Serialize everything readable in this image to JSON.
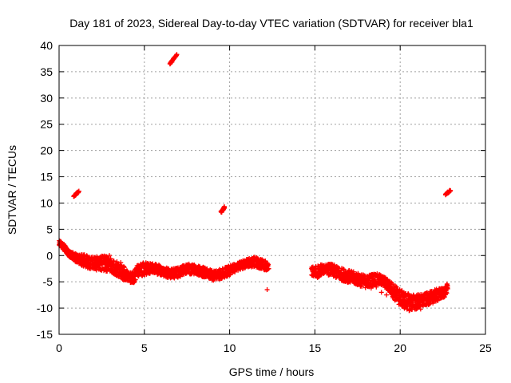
{
  "chart_data": {
    "type": "scatter",
    "title": "Day 181 of 2023, Sidereal Day-to-day VTEC variation (SDTVAR) for receiver bla1",
    "xlabel": "GPS time / hours",
    "ylabel": "SDTVAR / TECUs",
    "xlim": [
      0,
      25
    ],
    "ylim": [
      -15,
      40
    ],
    "xticks": [
      "0",
      "5",
      "10",
      "15",
      "20",
      "25"
    ],
    "yticks": [
      "40",
      "35",
      "30",
      "25",
      "20",
      "15",
      "10",
      "5",
      "0",
      "-5",
      "-10",
      "-15"
    ],
    "grid": true,
    "marker": "+",
    "series_color": "#ff0000",
    "trend": [
      [
        0.0,
        2.5
      ],
      [
        0.3,
        1.5
      ],
      [
        0.6,
        0.3
      ],
      [
        1.0,
        -0.5
      ],
      [
        1.5,
        -1.0
      ],
      [
        2.0,
        -1.5
      ],
      [
        2.5,
        -1.5
      ],
      [
        3.0,
        -1.5
      ],
      [
        3.3,
        -2.5
      ],
      [
        3.7,
        -3.0
      ],
      [
        4.0,
        -4.0
      ],
      [
        4.3,
        -4.5
      ],
      [
        4.6,
        -3.0
      ],
      [
        5.0,
        -2.5
      ],
      [
        5.5,
        -2.5
      ],
      [
        6.0,
        -2.8
      ],
      [
        6.5,
        -3.5
      ],
      [
        7.0,
        -3.2
      ],
      [
        7.5,
        -2.5
      ],
      [
        8.0,
        -2.8
      ],
      [
        8.5,
        -3.2
      ],
      [
        9.0,
        -3.8
      ],
      [
        9.5,
        -3.5
      ],
      [
        10.0,
        -2.8
      ],
      [
        10.5,
        -2.0
      ],
      [
        11.0,
        -1.5
      ],
      [
        11.5,
        -1.2
      ],
      [
        12.0,
        -1.8
      ],
      [
        12.3,
        -2.0
      ],
      null,
      [
        14.8,
        -3.2
      ],
      [
        15.2,
        -3.0
      ],
      [
        15.6,
        -2.5
      ],
      [
        16.0,
        -2.8
      ],
      [
        16.5,
        -3.5
      ],
      [
        17.0,
        -4.0
      ],
      [
        17.5,
        -4.5
      ],
      [
        18.0,
        -5.0
      ],
      [
        18.5,
        -4.5
      ],
      [
        19.0,
        -4.8
      ],
      [
        19.4,
        -6.0
      ],
      [
        19.8,
        -7.5
      ],
      [
        20.2,
        -8.5
      ],
      [
        20.6,
        -9.0
      ],
      [
        21.0,
        -8.8
      ],
      [
        21.4,
        -8.5
      ],
      [
        21.8,
        -8.0
      ],
      [
        22.2,
        -7.5
      ],
      [
        22.6,
        -7.0
      ],
      [
        22.8,
        -6.0
      ]
    ],
    "spread": [
      0.6,
      0.8,
      0.8,
      1.0,
      1.5,
      1.5,
      1.8,
      2.0,
      1.8,
      2.0,
      1.5,
      1.5,
      1.5,
      1.5,
      1.2,
      1.2,
      1.2,
      1.2,
      1.2,
      1.2,
      1.2,
      1.2,
      1.2,
      1.2,
      1.0,
      1.0,
      1.2,
      1.2,
      1.0,
      0,
      1.2,
      1.5,
      1.2,
      1.5,
      1.5,
      1.5,
      1.5,
      1.5,
      1.5,
      1.2,
      1.5,
      2.0,
      2.0,
      2.0,
      1.8,
      1.5,
      1.5,
      1.5,
      1.2,
      1.0
    ],
    "clusters": [
      {
        "x": [
          6.5,
          6.9
        ],
        "y": [
          36.5,
          38.2
        ]
      },
      {
        "x": [
          0.85,
          1.15
        ],
        "y": [
          11.3,
          12.2
        ]
      },
      {
        "x": [
          9.5,
          9.7
        ],
        "y": [
          8.3,
          9.2
        ]
      },
      {
        "x": [
          22.65,
          22.95
        ],
        "y": [
          11.6,
          12.4
        ]
      }
    ],
    "outliers": [
      [
        12.2,
        -6.5
      ],
      [
        18.6,
        -6.0
      ],
      [
        18.9,
        -7.0
      ],
      [
        18.3,
        -6.2
      ],
      [
        19.2,
        -7.5
      ],
      [
        21.2,
        -10.2
      ]
    ]
  }
}
